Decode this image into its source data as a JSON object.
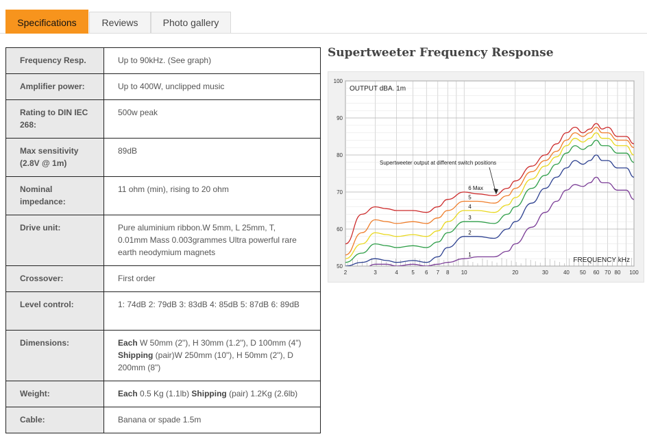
{
  "tabs": [
    {
      "label": "Specifications",
      "active": true
    },
    {
      "label": "Reviews",
      "active": false
    },
    {
      "label": "Photo gallery",
      "active": false
    }
  ],
  "specs": [
    {
      "label": "Frequency Resp.",
      "value": "Up to 90kHz. (See graph)"
    },
    {
      "label": "Amplifier power:",
      "value": "Up to 400W, unclipped music"
    },
    {
      "label": "Rating to DIN IEC 268:",
      "value": "500w peak"
    },
    {
      "label": "Max sensitivity (2.8V @ 1m)",
      "value": "89dB"
    },
    {
      "label": "Nominal impedance:",
      "value": "11 ohm (min), rising to 20 ohm"
    },
    {
      "label": "Drive unit:",
      "value": "Pure aluminium ribbon.W 5mm, L 25mm, T, 0.01mm Mass 0.003grammes Ultra powerful rare earth neodymium magnets"
    },
    {
      "label": "Crossover:",
      "value": "First order"
    },
    {
      "label": "Level control:",
      "value": "1:   74dB 2:   79dB 3:   83dB 4:   85dB 5:   87dB 6: 89dB"
    },
    {
      "label": "Dimensions:",
      "each_label": "Each",
      "each_value": " W 50mm (2\"), H 30mm (1.2\"), D 100mm (4\")",
      "ship_label": "Shipping",
      "ship_value": " (pair)W 250mm (10\"), H 50mm (2\"), D 200mm (8\")"
    },
    {
      "label": "Weight:",
      "each_label": "Each",
      "each_value": " 0.5 Kg (1.1lb) ",
      "ship_label": "Shipping",
      "ship_value": " (pair) 1.2Kg (2.6lb)"
    },
    {
      "label": "Cable:",
      "value": "Banana or spade 1.5m"
    }
  ],
  "chart_title": "Supertweeter Frequency Response",
  "chart_data": {
    "type": "line",
    "title": "Supertweeter Frequency Response",
    "ylabel": "OUTPUT dBA. 1m",
    "xlabel": "FREQUENCY kHz",
    "annotation": "Supertweeter output at different switch positions",
    "xscale": "log",
    "xlim": [
      2,
      100
    ],
    "ylim": [
      50,
      100
    ],
    "x_ticks": [
      2,
      3,
      4,
      5,
      6,
      7,
      8,
      10,
      20,
      30,
      40,
      50,
      60,
      70,
      80,
      100
    ],
    "y_ticks": [
      50,
      60,
      70,
      80,
      90,
      100
    ],
    "x": [
      2,
      2.5,
      3,
      3.5,
      4,
      5,
      6,
      7,
      8,
      10,
      12,
      15,
      18,
      20,
      25,
      30,
      35,
      40,
      45,
      50,
      55,
      60,
      65,
      70,
      80,
      90,
      100
    ],
    "series": [
      {
        "name": "6 Max",
        "color": "#cc2a2a",
        "values": [
          56,
          64,
          66,
          65.5,
          65,
          65,
          64.5,
          66,
          68,
          70,
          69.5,
          69,
          71,
          73,
          77,
          80,
          83,
          86,
          87.5,
          86,
          87,
          88.5,
          87,
          87.5,
          85,
          85,
          83
        ]
      },
      {
        "name": "5",
        "color": "#ef7d2a",
        "values": [
          53,
          59,
          62.5,
          62,
          61.5,
          62,
          61.5,
          63,
          65,
          67.5,
          67.5,
          67,
          69,
          71,
          75.5,
          78.5,
          81,
          84,
          86,
          85,
          86,
          87.5,
          86,
          86,
          84,
          84,
          82
        ]
      },
      {
        "name": "4",
        "color": "#e9d81e",
        "values": [
          52,
          56,
          59,
          58.5,
          58,
          58.5,
          58,
          59.5,
          62,
          65,
          65,
          64.5,
          66.5,
          68.5,
          73.5,
          77,
          79.5,
          82.5,
          84.5,
          83.5,
          84.5,
          86,
          84.5,
          84.5,
          82.5,
          82.5,
          80
        ]
      },
      {
        "name": "3",
        "color": "#2e9e48",
        "values": [
          51,
          53.5,
          56,
          55.5,
          55,
          55.5,
          55,
          56.5,
          59,
          62,
          62,
          61.5,
          64,
          66,
          71,
          74.5,
          77.5,
          80.5,
          82.5,
          81.5,
          82.5,
          84,
          82.5,
          82.5,
          80.5,
          80.5,
          78
        ]
      },
      {
        "name": "2",
        "color": "#2b3f8f",
        "values": [
          50,
          51,
          52,
          51.5,
          51,
          51.5,
          51,
          52.5,
          55,
          58,
          58,
          57.5,
          60,
          62,
          67,
          71,
          74,
          76.5,
          78.5,
          77.5,
          78.5,
          80,
          78.5,
          78.5,
          76.5,
          76.5,
          74
        ]
      },
      {
        "name": "1",
        "color": "#7a3c96",
        "values": [
          48.5,
          49,
          50.5,
          50.5,
          50,
          50.5,
          50,
          50.5,
          51,
          52,
          52.5,
          52.5,
          54,
          56,
          60.5,
          64.5,
          67.5,
          70.5,
          72,
          71.5,
          72.5,
          74,
          72.5,
          72.5,
          70.5,
          70.5,
          68
        ]
      }
    ]
  }
}
